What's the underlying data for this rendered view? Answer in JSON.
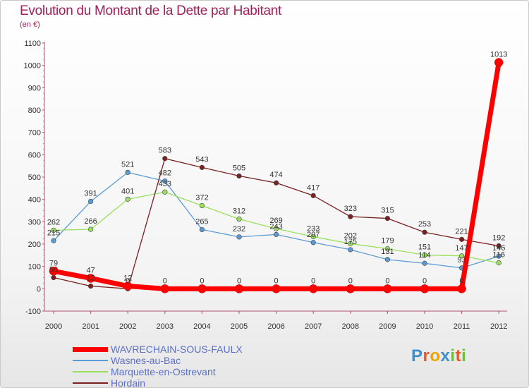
{
  "header": {
    "title": "Evolution du Montant de la Dette par Habitant",
    "subtitle": "(en €)"
  },
  "logo": {
    "text": "Proxiti",
    "colors": [
      "#3b8fd0",
      "#e8572a",
      "#f2a100",
      "#3b8fd0",
      "#6cbf3a",
      "#e8572a",
      "#6cbf3a"
    ]
  },
  "chart_data": {
    "type": "line",
    "title": "Evolution du Montant de la Dette par Habitant",
    "subtitle": "(en €)",
    "xlabel": "",
    "ylabel": "",
    "x": [
      "2000",
      "2001",
      "2002",
      "2003",
      "2004",
      "2005",
      "2006",
      "2007",
      "2008",
      "2009",
      "2010",
      "2011",
      "2012"
    ],
    "ylim": [
      -100,
      1100
    ],
    "yticks": [
      "-100",
      "0",
      "100",
      "200",
      "300",
      "400",
      "500",
      "600",
      "700",
      "800",
      "900",
      "1000",
      "1100"
    ],
    "grid": false,
    "legend_position": "bottom-left",
    "series": [
      {
        "name": "WAVRECHAIN-SOUS-FAULX",
        "color": "#ff0000",
        "values": [
          79,
          47,
          12,
          0,
          0,
          0,
          0,
          0,
          0,
          0,
          0,
          0,
          1013
        ],
        "labels": [
          "79",
          "47",
          "12",
          "0",
          "0",
          "0",
          "0",
          "0",
          "0",
          "0",
          "0",
          "0",
          "1013"
        ]
      },
      {
        "name": "Wasnes-au-Bac",
        "color": "#5b9bd5",
        "values": [
          215,
          391,
          521,
          482,
          265,
          232,
          243,
          207,
          175,
          131,
          114,
          93,
          146
        ],
        "labels": [
          "215",
          "391",
          "521",
          "482",
          "265",
          "232",
          "243",
          "207",
          "175",
          "131",
          "114",
          "93",
          "146"
        ]
      },
      {
        "name": "Marquette-en-Ostrevant",
        "color": "#99e05c",
        "values": [
          262,
          266,
          401,
          433,
          372,
          312,
          269,
          233,
          202,
          179,
          151,
          147,
          116
        ],
        "labels": [
          "262",
          "266",
          "401",
          "433",
          "372",
          "312",
          "269",
          "233",
          "202",
          "179",
          "151",
          "147",
          "116"
        ]
      },
      {
        "name": "Hordain",
        "color": "#7a2020",
        "values": [
          50,
          12,
          0,
          583,
          543,
          505,
          474,
          417,
          323,
          315,
          253,
          221,
          192
        ],
        "labels": [
          "50",
          "12",
          "0",
          "583",
          "543",
          "505",
          "474",
          "417",
          "323",
          "315",
          "253",
          "221",
          "192"
        ]
      }
    ]
  }
}
